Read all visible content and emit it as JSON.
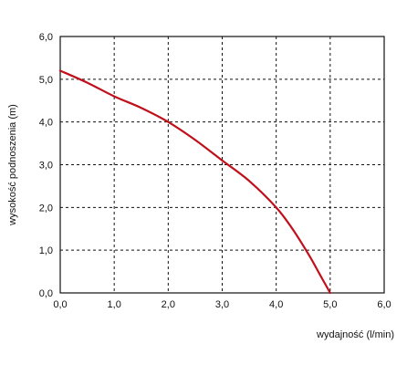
{
  "chart_data": {
    "type": "line",
    "title": "",
    "xlabel": "wydajność (l/min)",
    "ylabel": "wysokość podnoszenia (m)",
    "xlim": [
      0,
      6
    ],
    "ylim": [
      0,
      6
    ],
    "x_ticks": [
      "0,0",
      "1,0",
      "2,0",
      "3,0",
      "4,0",
      "5,0",
      "6,0"
    ],
    "y_ticks": [
      "0,0",
      "1,0",
      "2,0",
      "3,0",
      "4,0",
      "5,0",
      "6,0"
    ],
    "grid": true,
    "grid_style": "dashed",
    "series": [
      {
        "color": "#c0101c",
        "x": [
          0.0,
          0.5,
          1.0,
          1.5,
          2.0,
          2.5,
          3.0,
          3.5,
          4.0,
          4.3,
          4.6,
          4.8,
          5.0
        ],
        "y": [
          5.2,
          4.92,
          4.6,
          4.33,
          4.0,
          3.58,
          3.1,
          2.62,
          2.0,
          1.5,
          0.9,
          0.45,
          0.0
        ]
      }
    ]
  }
}
